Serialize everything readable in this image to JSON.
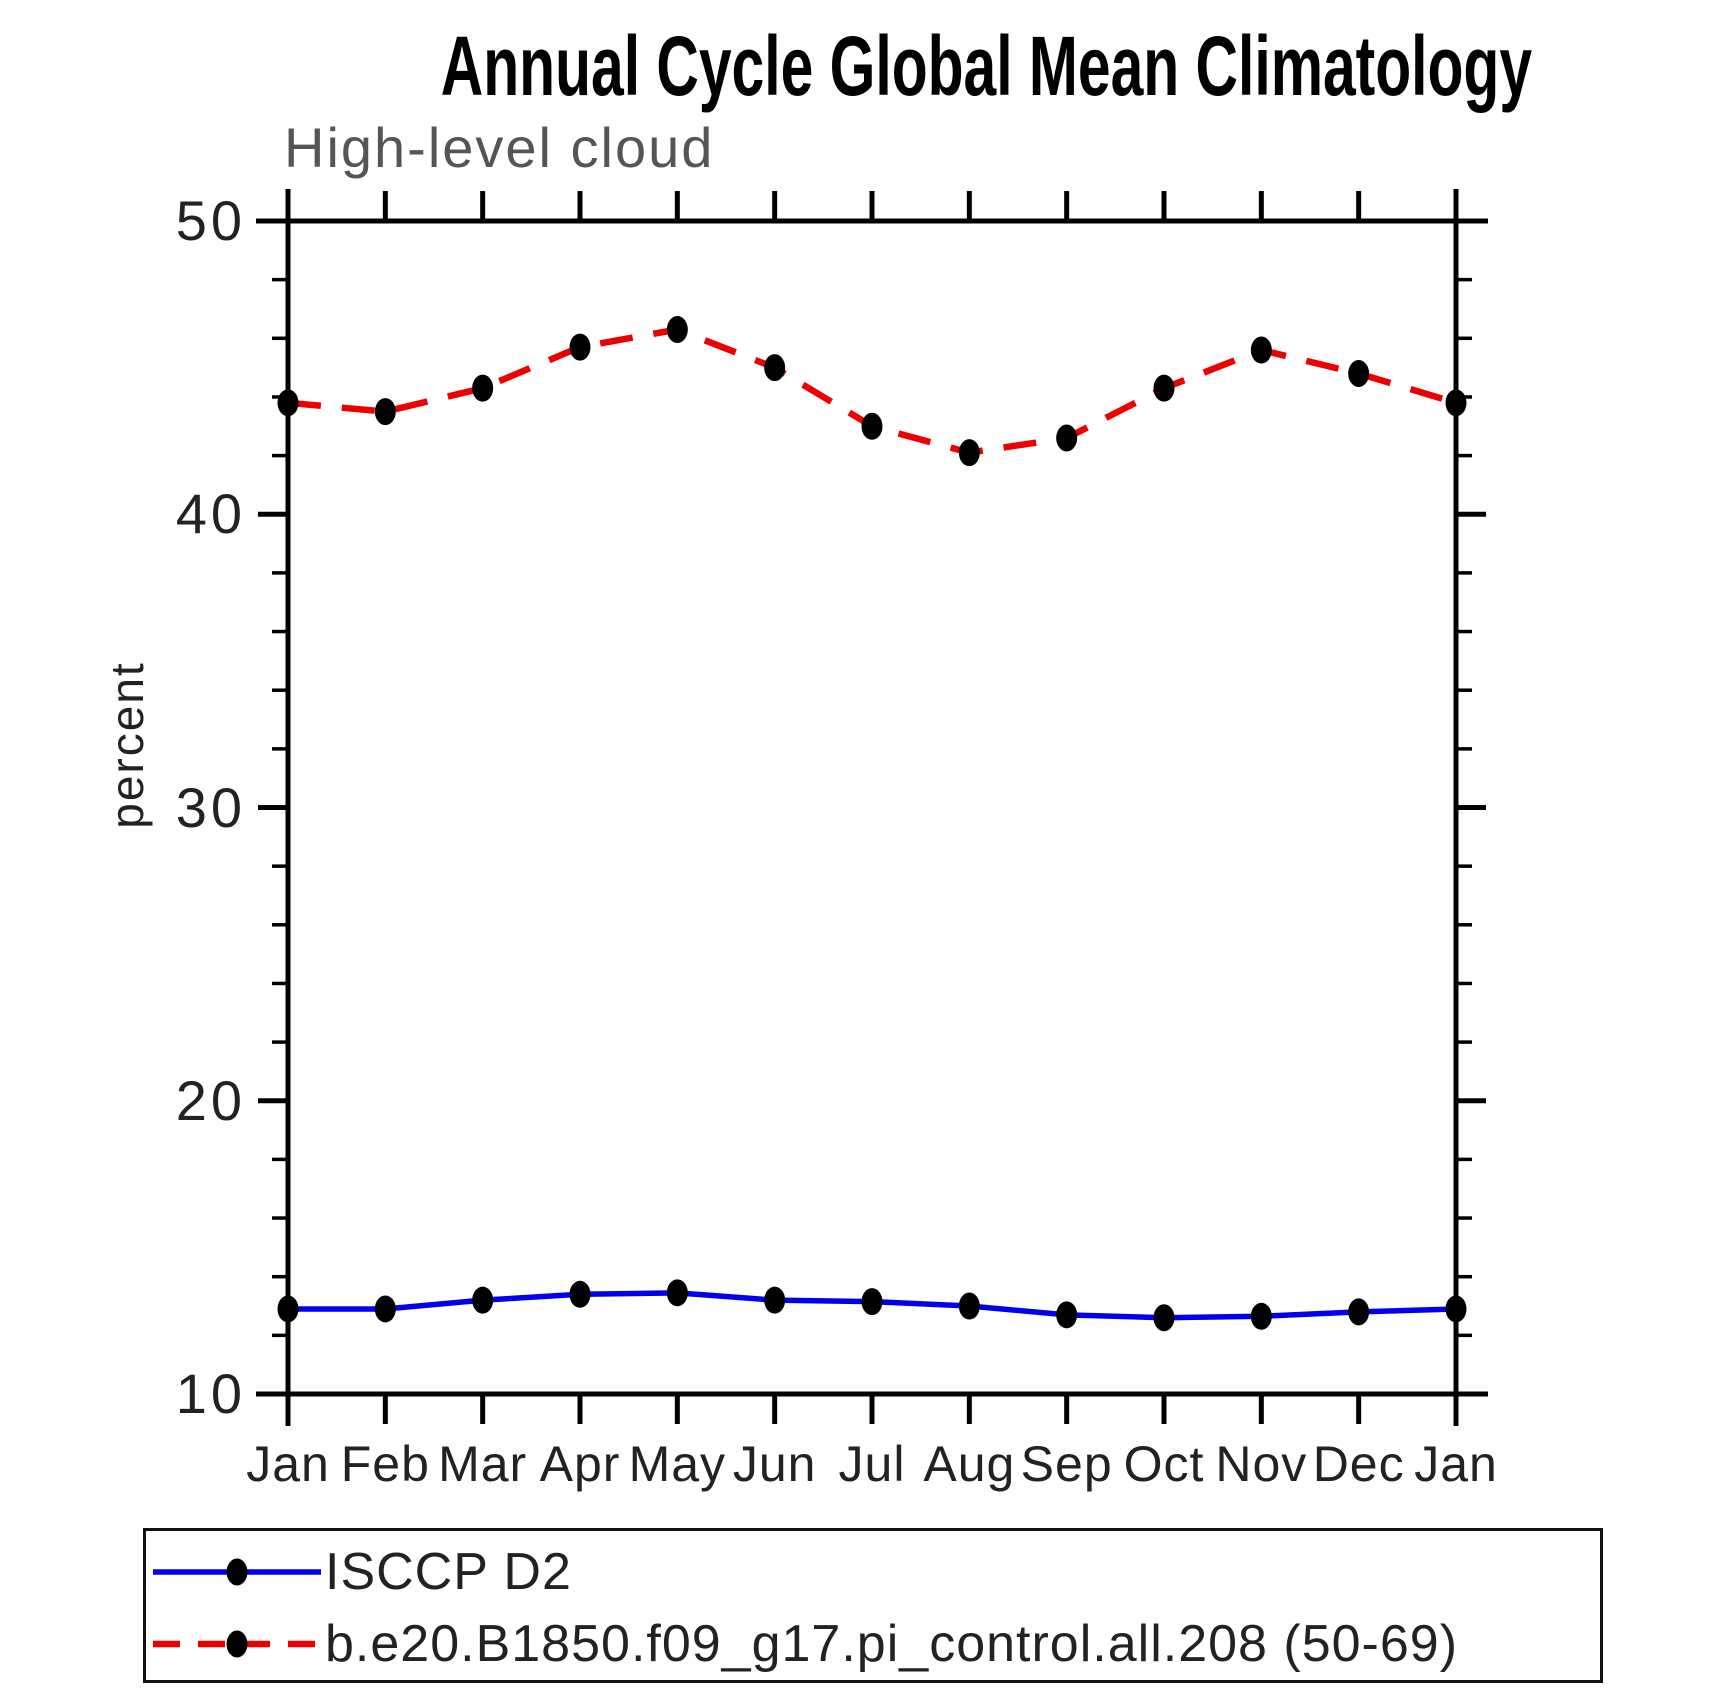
{
  "chart_data": {
    "type": "line",
    "title": "Annual Cycle Global Mean Climatology",
    "subtitle": "High-level cloud",
    "ylabel": "percent",
    "ylim": [
      10,
      50
    ],
    "y_major_ticks": [
      50,
      40,
      30,
      20,
      10
    ],
    "y_minor_tick_step": 2,
    "categories": [
      "Jan",
      "Feb",
      "Mar",
      "Apr",
      "May",
      "Jun",
      "Jul",
      "Aug",
      "Sep",
      "Oct",
      "Nov",
      "Dec",
      "Jan"
    ],
    "grid": false,
    "legend_position": "bottom",
    "axis_color": "#000000",
    "marker_color": "#000000",
    "series": [
      {
        "name": "ISCCP D2",
        "color": "#0000ee",
        "line_style": "solid",
        "marker": "filled-circle",
        "values": [
          12.9,
          12.9,
          13.2,
          13.4,
          13.45,
          13.2,
          13.15,
          13.0,
          12.7,
          12.6,
          12.65,
          12.8,
          12.9
        ]
      },
      {
        "name": "b.e20.B1850.f09_g17.pi_control.all.208 (50-69)",
        "color": "#ee0000",
        "line_style": "dashed",
        "marker": "filled-circle",
        "values": [
          43.8,
          43.5,
          44.3,
          45.7,
          46.3,
          45.0,
          43.0,
          42.1,
          42.6,
          44.3,
          45.6,
          44.8,
          43.8
        ]
      }
    ]
  }
}
